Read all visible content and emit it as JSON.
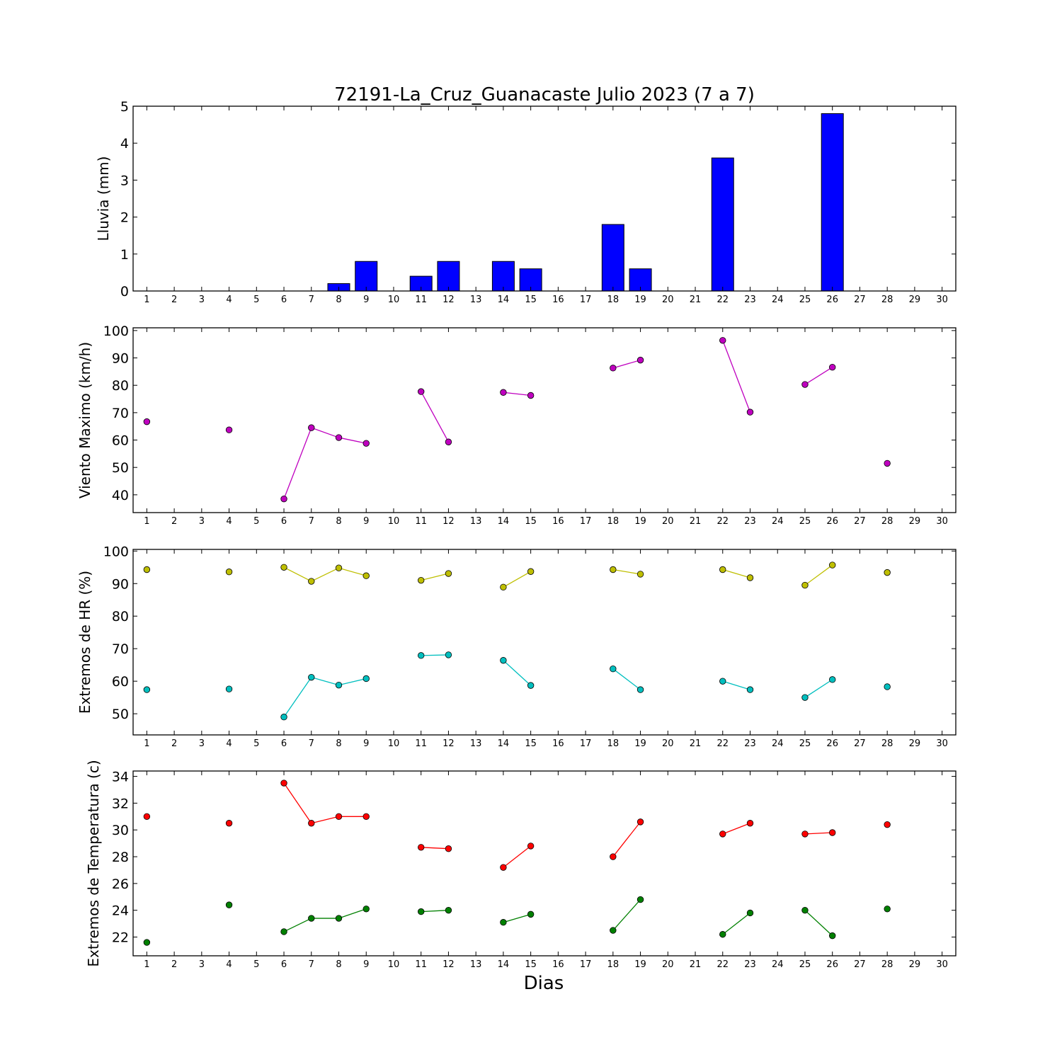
{
  "chart_data": [
    {
      "type": "bar",
      "title": "72191-La_Cruz_Guanacaste Julio 2023  (7 a 7)",
      "ylabel": "Lluvia (mm)",
      "ylim": [
        0,
        5
      ],
      "yticks": [
        0,
        1,
        2,
        3,
        4,
        5
      ],
      "xticks": [
        1,
        2,
        3,
        4,
        5,
        6,
        7,
        8,
        9,
        10,
        11,
        12,
        13,
        14,
        15,
        16,
        17,
        18,
        19,
        20,
        21,
        22,
        23,
        24,
        25,
        26,
        27,
        28,
        29,
        30
      ],
      "color": "#0000ff",
      "x": [
        1,
        2,
        3,
        4,
        5,
        6,
        7,
        8,
        9,
        10,
        11,
        12,
        13,
        14,
        15,
        16,
        17,
        18,
        19,
        20,
        21,
        22,
        23,
        24,
        25,
        26,
        27,
        28,
        29,
        30
      ],
      "values": [
        0,
        0,
        0,
        0,
        0,
        0,
        0,
        0.2,
        0.8,
        0,
        0.4,
        0.8,
        0,
        0.8,
        0.6,
        0,
        0,
        1.8,
        0.6,
        0,
        0,
        3.6,
        0,
        0,
        0,
        4.8,
        0,
        0,
        0,
        0
      ]
    },
    {
      "type": "line",
      "ylabel": "Viento Maximo (km/h)",
      "ylim": [
        33.5,
        101
      ],
      "yticks": [
        40,
        50,
        60,
        70,
        80,
        90,
        100
      ],
      "xticks": [
        1,
        2,
        3,
        4,
        5,
        6,
        7,
        8,
        9,
        10,
        11,
        12,
        13,
        14,
        15,
        16,
        17,
        18,
        19,
        20,
        21,
        22,
        23,
        24,
        25,
        26,
        27,
        28,
        29,
        30
      ],
      "series": [
        {
          "color": "#bf00bf",
          "x": [
            1,
            2,
            3,
            4,
            5,
            6,
            7,
            8,
            9,
            10,
            11,
            12,
            13,
            14,
            15,
            16,
            17,
            18,
            19,
            20,
            21,
            22,
            23,
            24,
            25,
            26,
            27,
            28,
            29,
            30
          ],
          "values": [
            66.7,
            null,
            null,
            63.7,
            null,
            38.5,
            64.5,
            60.9,
            58.8,
            null,
            77.7,
            59.3,
            null,
            77.4,
            76.3,
            null,
            null,
            86.3,
            89.2,
            null,
            null,
            96.4,
            70.2,
            null,
            80.3,
            86.6,
            null,
            51.5,
            null,
            null
          ]
        }
      ]
    },
    {
      "type": "line",
      "ylabel": "Extremos de HR (%)",
      "ylim": [
        43.5,
        100.5
      ],
      "yticks": [
        50,
        60,
        70,
        80,
        90,
        100
      ],
      "xticks": [
        1,
        2,
        3,
        4,
        5,
        6,
        7,
        8,
        9,
        10,
        11,
        12,
        13,
        14,
        15,
        16,
        17,
        18,
        19,
        20,
        21,
        22,
        23,
        24,
        25,
        26,
        27,
        28,
        29,
        30
      ],
      "series": [
        {
          "color": "#bfbf00",
          "x": [
            1,
            2,
            3,
            4,
            5,
            6,
            7,
            8,
            9,
            10,
            11,
            12,
            13,
            14,
            15,
            16,
            17,
            18,
            19,
            20,
            21,
            22,
            23,
            24,
            25,
            26,
            27,
            28,
            29,
            30
          ],
          "values": [
            94.3,
            null,
            null,
            93.6,
            null,
            95,
            90.7,
            94.8,
            92.4,
            null,
            91,
            93.1,
            null,
            88.9,
            93.7,
            null,
            null,
            94.3,
            92.9,
            null,
            null,
            94.3,
            91.8,
            null,
            89.5,
            95.7,
            null,
            93.4,
            null,
            null
          ]
        },
        {
          "color": "#00bfbf",
          "x": [
            1,
            2,
            3,
            4,
            5,
            6,
            7,
            8,
            9,
            10,
            11,
            12,
            13,
            14,
            15,
            16,
            17,
            18,
            19,
            20,
            21,
            22,
            23,
            24,
            25,
            26,
            27,
            28,
            29,
            30
          ],
          "values": [
            57.4,
            null,
            null,
            57.6,
            null,
            49,
            61.2,
            58.8,
            60.8,
            null,
            67.9,
            68.1,
            null,
            66.4,
            58.7,
            null,
            null,
            63.8,
            57.4,
            null,
            null,
            60,
            57.4,
            null,
            55,
            60.5,
            null,
            58.3,
            null,
            null
          ]
        }
      ]
    },
    {
      "type": "line",
      "ylabel": "Extremos de Temperatura (c)",
      "xlabel": "Dias",
      "ylim": [
        20.6,
        34.4
      ],
      "yticks": [
        22,
        24,
        26,
        28,
        30,
        32,
        34
      ],
      "xticks": [
        1,
        2,
        3,
        4,
        5,
        6,
        7,
        8,
        9,
        10,
        11,
        12,
        13,
        14,
        15,
        16,
        17,
        18,
        19,
        20,
        21,
        22,
        23,
        24,
        25,
        26,
        27,
        28,
        29,
        30
      ],
      "series": [
        {
          "color": "#ff0000",
          "x": [
            1,
            2,
            3,
            4,
            5,
            6,
            7,
            8,
            9,
            10,
            11,
            12,
            13,
            14,
            15,
            16,
            17,
            18,
            19,
            20,
            21,
            22,
            23,
            24,
            25,
            26,
            27,
            28,
            29,
            30
          ],
          "values": [
            31,
            null,
            null,
            30.5,
            null,
            33.5,
            30.5,
            31,
            31,
            null,
            28.7,
            28.6,
            null,
            27.2,
            28.8,
            null,
            null,
            28,
            30.6,
            null,
            null,
            29.7,
            30.5,
            null,
            29.7,
            29.8,
            null,
            30.4,
            null,
            null
          ]
        },
        {
          "color": "#008000",
          "x": [
            1,
            2,
            3,
            4,
            5,
            6,
            7,
            8,
            9,
            10,
            11,
            12,
            13,
            14,
            15,
            16,
            17,
            18,
            19,
            20,
            21,
            22,
            23,
            24,
            25,
            26,
            27,
            28,
            29,
            30
          ],
          "values": [
            21.6,
            null,
            null,
            24.4,
            null,
            22.4,
            23.4,
            23.4,
            24.1,
            null,
            23.9,
            24,
            null,
            23.1,
            23.7,
            null,
            null,
            22.5,
            24.8,
            null,
            null,
            22.2,
            23.8,
            null,
            24,
            22.1,
            null,
            24.1,
            null,
            null
          ]
        }
      ]
    }
  ]
}
